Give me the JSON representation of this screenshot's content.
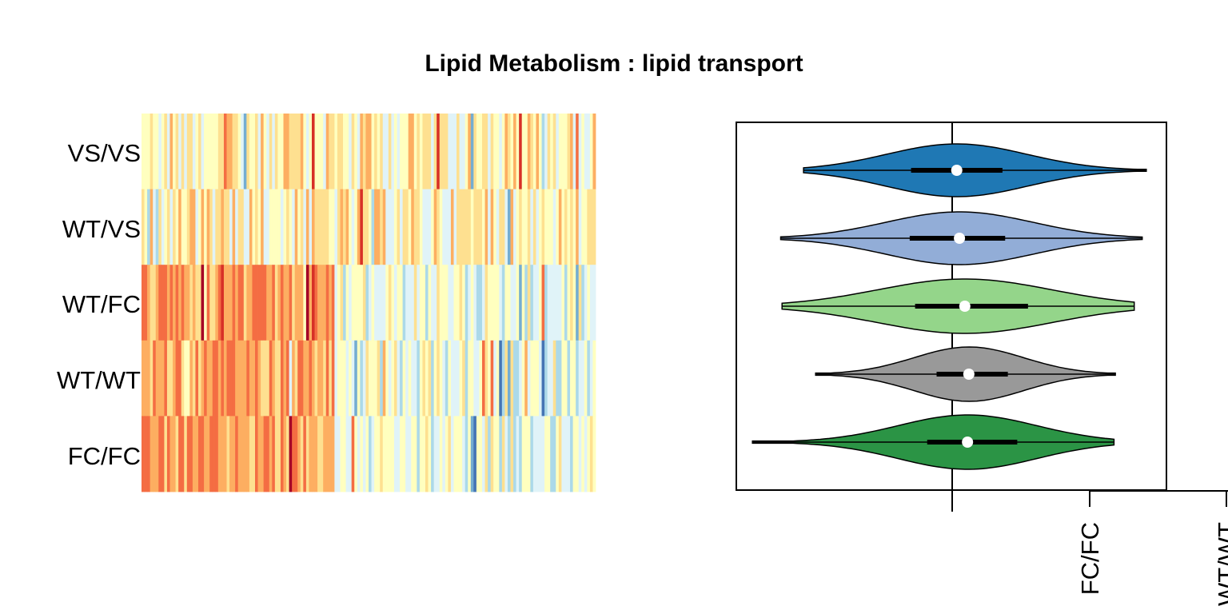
{
  "chart_data": [
    {
      "type": "heatmap",
      "title": "Lipid Metabolism : lipid transport",
      "rows": [
        "VS/VS",
        "WT/VS",
        "WT/FC",
        "WT/WT",
        "FC/FC"
      ],
      "n_columns": 160,
      "palette": [
        "#a50026",
        "#d73027",
        "#f46d43",
        "#fdae61",
        "#fee090",
        "#ffffbf",
        "#e0f3f8",
        "#abd9e9",
        "#74add1",
        "#4575b4",
        "#313695"
      ],
      "legend": "none"
    },
    {
      "type": "violin",
      "orientation": "horizontal",
      "categories": [
        "VS/VS",
        "WT/VS",
        "WT/FC",
        "WT/WT",
        "FC/FC"
      ],
      "visible_tick_labels": [
        "FC/FC",
        "WT/WT"
      ],
      "reference_line": 0,
      "xlim": [
        -1.6,
        1.6
      ],
      "series": [
        {
          "category": "VS/VS",
          "color": "#1f78b4",
          "median": 0.04,
          "q1": -0.3,
          "q3": 0.38,
          "min": -1.1,
          "max": 1.45
        },
        {
          "category": "WT/VS",
          "color": "#92add7",
          "median": 0.06,
          "q1": -0.31,
          "q3": 0.4,
          "min": -1.27,
          "max": 1.42
        },
        {
          "category": "WT/FC",
          "color": "#94d58a",
          "median": 0.1,
          "q1": -0.27,
          "q3": 0.57,
          "min": -1.26,
          "max": 1.36
        },
        {
          "category": "WT/WT",
          "color": "#999999",
          "median": 0.13,
          "q1": -0.11,
          "q3": 0.42,
          "min": -1.01,
          "max": 1.22
        },
        {
          "category": "FC/FC",
          "color": "#2b9445",
          "median": 0.12,
          "q1": -0.18,
          "q3": 0.49,
          "min": -1.48,
          "max": 1.21
        }
      ]
    }
  ]
}
